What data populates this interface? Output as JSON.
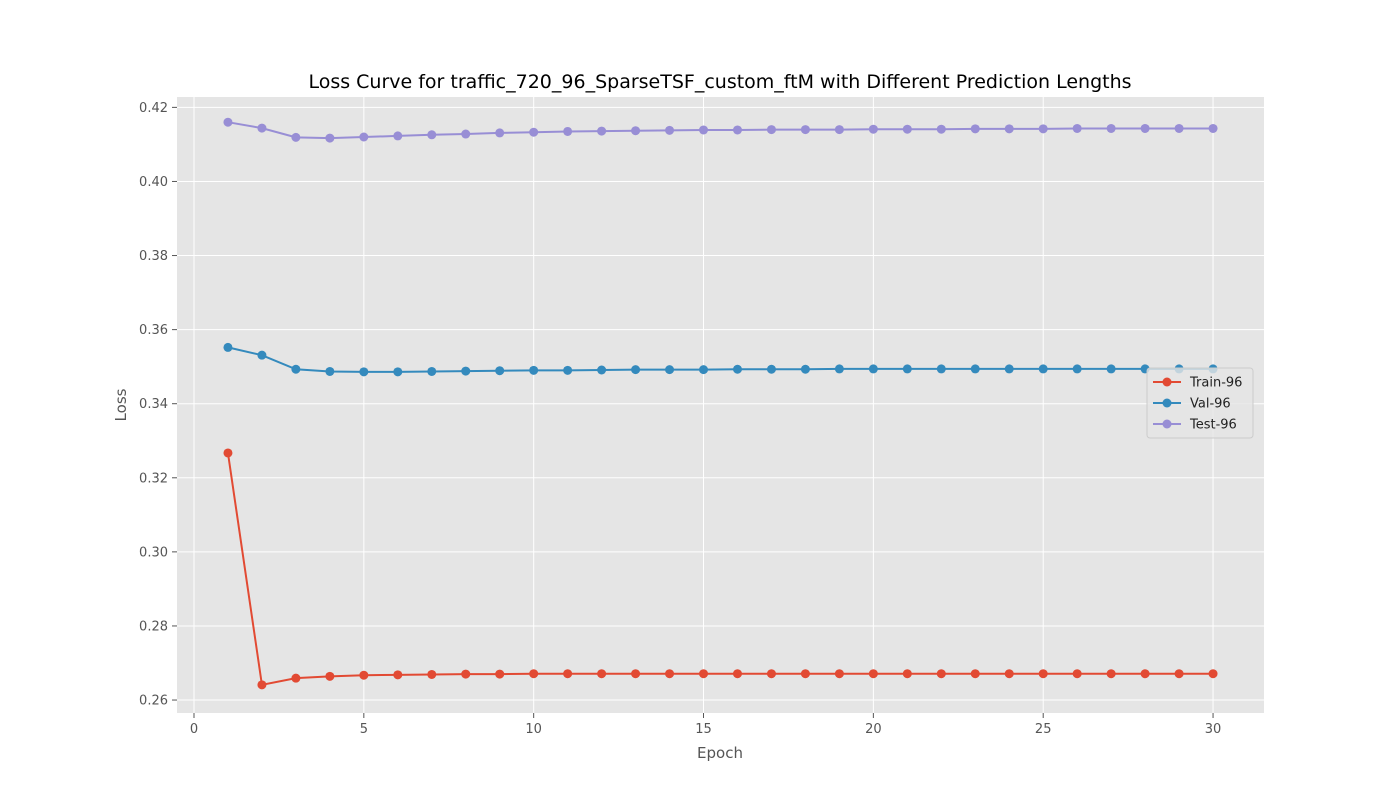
{
  "chart_data": {
    "type": "line",
    "title": "Loss Curve for traffic_720_96_SparseTSF_custom_ftM with Different Prediction Lengths",
    "xlabel": "Epoch",
    "ylabel": "Loss",
    "xlim": [
      -0.5,
      31.5
    ],
    "ylim": [
      0.2565,
      0.4228
    ],
    "xticks": [
      0,
      5,
      10,
      15,
      20,
      25,
      30
    ],
    "yticks": [
      0.26,
      0.28,
      0.3,
      0.32,
      0.34,
      0.36,
      0.38,
      0.4,
      0.42
    ],
    "ytick_labels": [
      "0.26",
      "0.28",
      "0.30",
      "0.32",
      "0.34",
      "0.36",
      "0.38",
      "0.40",
      "0.42"
    ],
    "grid": true,
    "legend_position": "center-right",
    "x": [
      1,
      2,
      3,
      4,
      5,
      6,
      7,
      8,
      9,
      10,
      11,
      12,
      13,
      14,
      15,
      16,
      17,
      18,
      19,
      20,
      21,
      22,
      23,
      24,
      25,
      26,
      27,
      28,
      29,
      30
    ],
    "series": [
      {
        "name": "Train-96",
        "color": "#E24A33",
        "values": [
          0.3267,
          0.2641,
          0.2659,
          0.2664,
          0.2667,
          0.2668,
          0.2669,
          0.267,
          0.267,
          0.2671,
          0.2671,
          0.2671,
          0.2671,
          0.2671,
          0.2671,
          0.2671,
          0.2671,
          0.2671,
          0.2671,
          0.2671,
          0.2671,
          0.2671,
          0.2671,
          0.2671,
          0.2671,
          0.2671,
          0.2671,
          0.2671,
          0.2671,
          0.2671
        ]
      },
      {
        "name": "Val-96",
        "color": "#348ABD",
        "values": [
          0.3552,
          0.3531,
          0.3493,
          0.3487,
          0.3486,
          0.3486,
          0.3487,
          0.3488,
          0.3489,
          0.349,
          0.349,
          0.3491,
          0.3492,
          0.3492,
          0.3492,
          0.3493,
          0.3493,
          0.3493,
          0.3494,
          0.3494,
          0.3494,
          0.3494,
          0.3494,
          0.3494,
          0.3494,
          0.3494,
          0.3494,
          0.3494,
          0.3494,
          0.3494
        ]
      },
      {
        "name": "Test-96",
        "color": "#988ED5",
        "values": [
          0.416,
          0.4144,
          0.4119,
          0.4117,
          0.412,
          0.4123,
          0.4126,
          0.4128,
          0.4131,
          0.4133,
          0.4135,
          0.4136,
          0.4137,
          0.4138,
          0.4139,
          0.4139,
          0.414,
          0.414,
          0.414,
          0.4141,
          0.4141,
          0.4141,
          0.4142,
          0.4142,
          0.4142,
          0.4143,
          0.4143,
          0.4143,
          0.4143,
          0.4143
        ]
      }
    ]
  }
}
